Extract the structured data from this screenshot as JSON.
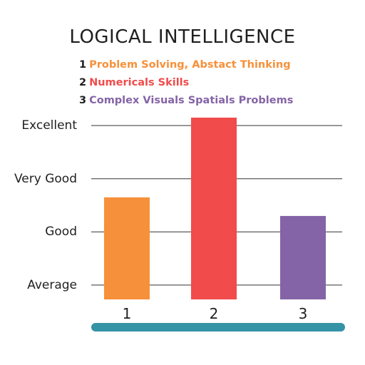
{
  "chart_data": {
    "type": "bar",
    "title": "LOGICAL INTELLIGENCE",
    "legend": [
      {
        "key": "1",
        "label": "Problem Solving, Abstact Thinking",
        "color": "#f7903a"
      },
      {
        "key": "2",
        "label": "Numericals Skills",
        "color": "#f14b4b"
      },
      {
        "key": "3",
        "label": "Complex Visuals Spatials Problems",
        "color": "#8464a6"
      }
    ],
    "categories": [
      "1",
      "2",
      "3"
    ],
    "values": [
      2.65,
      4.15,
      2.3
    ],
    "colors": [
      "#f7903a",
      "#f14b4b",
      "#8464a6"
    ],
    "yticks": [
      {
        "value": 1,
        "label": "Average"
      },
      {
        "value": 2,
        "label": "Good"
      },
      {
        "value": 3,
        "label": "Very Good"
      },
      {
        "value": 4,
        "label": "Excellent"
      }
    ],
    "ylim": [
      0.73,
      4.15
    ],
    "grid": true,
    "axis_color": "#3593a6",
    "grid_color": "#333333"
  }
}
